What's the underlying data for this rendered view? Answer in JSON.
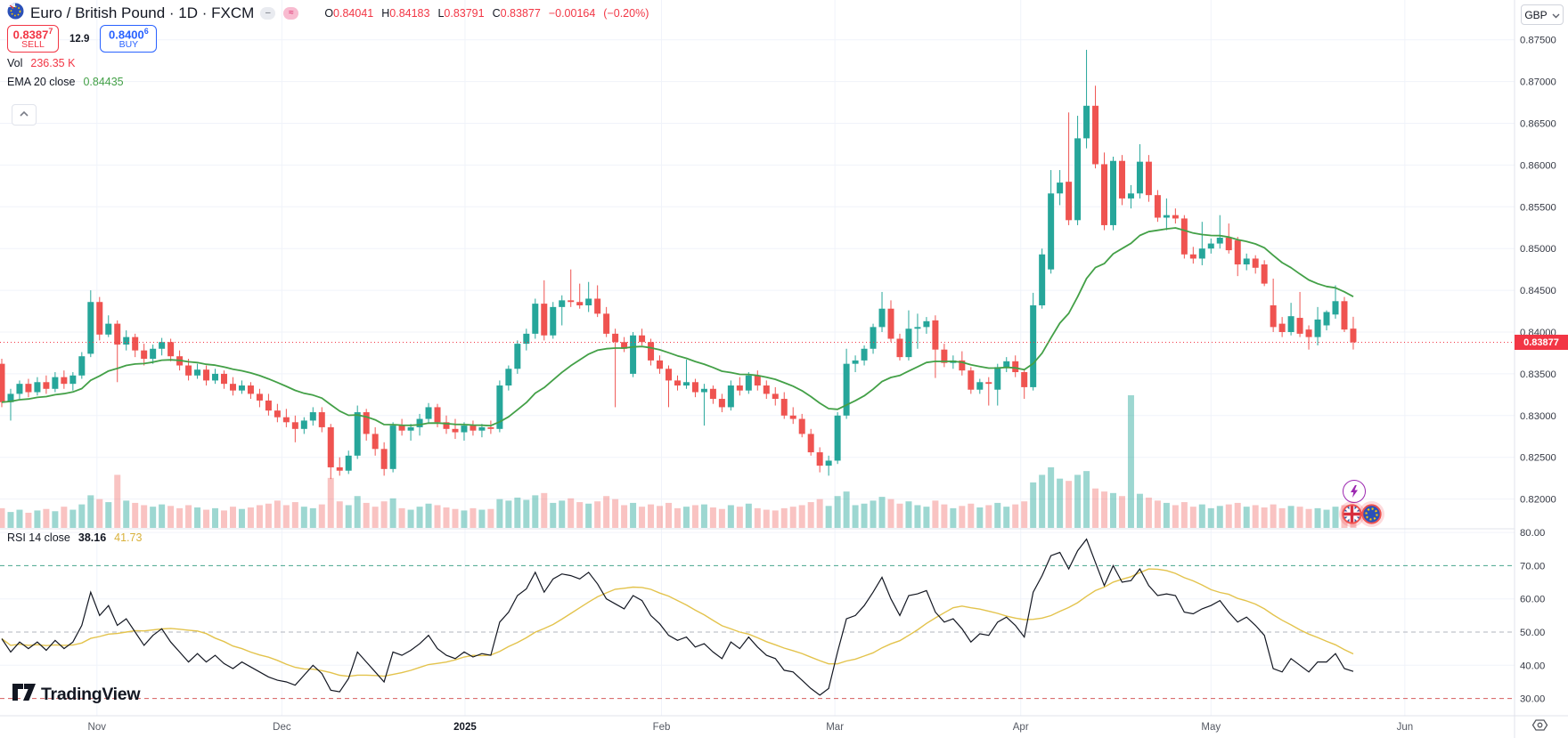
{
  "header": {
    "title": "Euro / British Pound · 1D · FXCM",
    "pill_minus": "–",
    "pill_approx": "≈",
    "ohlc": {
      "o_label": "O",
      "o_value": "0.84041",
      "h_label": "H",
      "h_value": "0.84183",
      "l_label": "L",
      "l_value": "0.83791",
      "c_label": "C",
      "c_value": "0.83877",
      "change": "−0.00164",
      "change_pct": "(−0.20%)"
    }
  },
  "trade": {
    "sell_price_main": "0.8387",
    "sell_price_sup": "7",
    "sell_label": "SELL",
    "spread": "12.9",
    "buy_price_main": "0.8400",
    "buy_price_sup": "6",
    "buy_label": "BUY"
  },
  "legend": {
    "vol_label": "Vol",
    "vol_value": "236.35 K",
    "ema_label": "EMA 20 close",
    "ema_value": "0.84435",
    "rsi_label": "RSI 14 close",
    "rsi_value": "38.16",
    "rsi_ma_value": "41.73"
  },
  "axis": {
    "currency": "GBP",
    "last_price_label": "0.83877",
    "price_ticks": [
      "0.87500",
      "0.87000",
      "0.86500",
      "0.86000",
      "0.85500",
      "0.85000",
      "0.84500",
      "0.84000",
      "0.83500",
      "0.83000",
      "0.82500",
      "0.82000"
    ],
    "rsi_ticks": [
      "80.00",
      "70.00",
      "60.00",
      "50.00",
      "40.00",
      "30.00"
    ]
  },
  "logo": {
    "text": "TradingView"
  },
  "colors": {
    "up": "#26a69a",
    "down": "#ef5350",
    "vol_up": "rgba(38,166,154,0.45)",
    "vol_down": "rgba(239,83,80,0.35)",
    "ema": "#43a047",
    "rsi_line": "#131722",
    "rsi_ma": "#e3c34c",
    "accent_red": "#f23645",
    "accent_blue": "#2962ff",
    "grid": "#f0f3fa",
    "border": "#e0e3eb",
    "axis_text": "#363a45",
    "level_upper": "#45a58d",
    "level_middle": "#b2b5be",
    "level_lower": "#d65c5c"
  },
  "chart_data": {
    "type": "candlestick",
    "title": "Euro / British Pound · 1D · FXCM",
    "legend_position": "top-left",
    "grid": true,
    "price_axis_ticks": [
      0.875,
      0.87,
      0.865,
      0.86,
      0.855,
      0.85,
      0.845,
      0.84,
      0.835,
      0.83,
      0.825,
      0.82
    ],
    "rsi_axis_ticks": [
      80,
      70,
      60,
      50,
      40,
      30
    ],
    "rsi_levels": {
      "upper": 70,
      "middle": 50,
      "lower": 30
    },
    "ema_period": 20,
    "rsi_period": 14,
    "rsi_ma_period": 14,
    "last_price": 0.83877,
    "x_ticks": [
      {
        "label": "Nov",
        "i": 10.7
      },
      {
        "label": "Dec",
        "i": 31.5
      },
      {
        "label": "2025",
        "i": 52.1,
        "bold": true
      },
      {
        "label": "Feb",
        "i": 74.2
      },
      {
        "label": "Mar",
        "i": 93.7
      },
      {
        "label": "Apr",
        "i": 114.6
      },
      {
        "label": "May",
        "i": 136.0
      },
      {
        "label": "Jun",
        "i": 157.8
      }
    ],
    "candles": [
      [
        0.8362,
        0.8368,
        0.831,
        0.8316
      ],
      [
        0.8316,
        0.8332,
        0.8294,
        0.8326
      ],
      [
        0.8326,
        0.8342,
        0.832,
        0.8338
      ],
      [
        0.8338,
        0.8344,
        0.8322,
        0.8328
      ],
      [
        0.8328,
        0.8346,
        0.8324,
        0.834
      ],
      [
        0.834,
        0.8348,
        0.8326,
        0.8332
      ],
      [
        0.8332,
        0.8352,
        0.8328,
        0.8346
      ],
      [
        0.8346,
        0.8354,
        0.8332,
        0.8338
      ],
      [
        0.8338,
        0.8352,
        0.833,
        0.8348
      ],
      [
        0.8348,
        0.8376,
        0.8344,
        0.8371
      ],
      [
        0.8374,
        0.845,
        0.837,
        0.8436
      ],
      [
        0.8436,
        0.8442,
        0.839,
        0.8397
      ],
      [
        0.8397,
        0.842,
        0.8394,
        0.841
      ],
      [
        0.841,
        0.8414,
        0.834,
        0.8385
      ],
      [
        0.8385,
        0.8402,
        0.8378,
        0.8394
      ],
      [
        0.8394,
        0.8398,
        0.837,
        0.8378
      ],
      [
        0.8378,
        0.8386,
        0.836,
        0.8368
      ],
      [
        0.8368,
        0.8385,
        0.8362,
        0.838
      ],
      [
        0.838,
        0.8393,
        0.8372,
        0.8388
      ],
      [
        0.8388,
        0.8392,
        0.8365,
        0.8371
      ],
      [
        0.8371,
        0.8378,
        0.8354,
        0.836
      ],
      [
        0.836,
        0.8368,
        0.8342,
        0.8348
      ],
      [
        0.8348,
        0.8362,
        0.8344,
        0.8355
      ],
      [
        0.8355,
        0.836,
        0.8336,
        0.8342
      ],
      [
        0.8342,
        0.8356,
        0.8338,
        0.835
      ],
      [
        0.835,
        0.8354,
        0.8332,
        0.8338
      ],
      [
        0.8338,
        0.8346,
        0.8324,
        0.833
      ],
      [
        0.833,
        0.8342,
        0.8326,
        0.8336
      ],
      [
        0.8336,
        0.834,
        0.832,
        0.8326
      ],
      [
        0.8326,
        0.8332,
        0.831,
        0.8318
      ],
      [
        0.8318,
        0.8326,
        0.83,
        0.8306
      ],
      [
        0.8306,
        0.8314,
        0.8292,
        0.8298
      ],
      [
        0.8298,
        0.8308,
        0.8286,
        0.8292
      ],
      [
        0.8292,
        0.83,
        0.8268,
        0.8284
      ],
      [
        0.8284,
        0.8298,
        0.8278,
        0.8294
      ],
      [
        0.8294,
        0.831,
        0.8288,
        0.8304
      ],
      [
        0.8304,
        0.831,
        0.828,
        0.8286
      ],
      [
        0.8286,
        0.829,
        0.8224,
        0.8238
      ],
      [
        0.8238,
        0.825,
        0.8228,
        0.8234
      ],
      [
        0.8234,
        0.8258,
        0.823,
        0.8252
      ],
      [
        0.8252,
        0.8312,
        0.8248,
        0.8304
      ],
      [
        0.8304,
        0.8308,
        0.827,
        0.8278
      ],
      [
        0.8278,
        0.8286,
        0.8252,
        0.826
      ],
      [
        0.826,
        0.8268,
        0.8228,
        0.8236
      ],
      [
        0.8236,
        0.8292,
        0.8232,
        0.8288
      ],
      [
        0.8288,
        0.8296,
        0.8276,
        0.8282
      ],
      [
        0.8282,
        0.829,
        0.827,
        0.8286
      ],
      [
        0.8286,
        0.8302,
        0.8276,
        0.8296
      ],
      [
        0.8296,
        0.8315,
        0.829,
        0.831
      ],
      [
        0.831,
        0.8314,
        0.8286,
        0.8292
      ],
      [
        0.8292,
        0.83,
        0.8278,
        0.8284
      ],
      [
        0.8284,
        0.8296,
        0.8272,
        0.828
      ],
      [
        0.828,
        0.8292,
        0.827,
        0.8288
      ],
      [
        0.8288,
        0.8294,
        0.8276,
        0.8282
      ],
      [
        0.8282,
        0.829,
        0.8274,
        0.8286
      ],
      [
        0.8286,
        0.8294,
        0.8278,
        0.8284
      ],
      [
        0.8284,
        0.8342,
        0.828,
        0.8336
      ],
      [
        0.8336,
        0.836,
        0.833,
        0.8356
      ],
      [
        0.8356,
        0.839,
        0.835,
        0.8386
      ],
      [
        0.8386,
        0.8404,
        0.8378,
        0.8398
      ],
      [
        0.8398,
        0.844,
        0.8392,
        0.8434
      ],
      [
        0.8434,
        0.8462,
        0.839,
        0.8396
      ],
      [
        0.8396,
        0.8436,
        0.8392,
        0.843
      ],
      [
        0.843,
        0.8444,
        0.8408,
        0.8438
      ],
      [
        0.8438,
        0.8475,
        0.843,
        0.8436
      ],
      [
        0.8436,
        0.8458,
        0.8428,
        0.8432
      ],
      [
        0.8432,
        0.846,
        0.8424,
        0.844
      ],
      [
        0.844,
        0.8456,
        0.8418,
        0.8422
      ],
      [
        0.8422,
        0.843,
        0.8394,
        0.8398
      ],
      [
        0.8398,
        0.8404,
        0.831,
        0.8388
      ],
      [
        0.8388,
        0.8394,
        0.8376,
        0.838
      ],
      [
        0.835,
        0.84,
        0.8346,
        0.8396
      ],
      [
        0.8396,
        0.8404,
        0.8384,
        0.8388
      ],
      [
        0.8388,
        0.8392,
        0.836,
        0.8366
      ],
      [
        0.8366,
        0.8372,
        0.835,
        0.8356
      ],
      [
        0.8356,
        0.836,
        0.831,
        0.8342
      ],
      [
        0.8342,
        0.8348,
        0.833,
        0.8336
      ],
      [
        0.8336,
        0.8367,
        0.8332,
        0.834
      ],
      [
        0.834,
        0.8344,
        0.8322,
        0.8328
      ],
      [
        0.8328,
        0.8338,
        0.8288,
        0.8332
      ],
      [
        0.8332,
        0.8336,
        0.8314,
        0.832
      ],
      [
        0.832,
        0.8326,
        0.8304,
        0.831
      ],
      [
        0.831,
        0.8342,
        0.8306,
        0.8336
      ],
      [
        0.8336,
        0.8346,
        0.8324,
        0.833
      ],
      [
        0.833,
        0.8352,
        0.8326,
        0.8348
      ],
      [
        0.8348,
        0.8354,
        0.833,
        0.8336
      ],
      [
        0.8336,
        0.8342,
        0.832,
        0.8326
      ],
      [
        0.8326,
        0.8334,
        0.8312,
        0.832
      ],
      [
        0.832,
        0.8328,
        0.8296,
        0.83
      ],
      [
        0.83,
        0.831,
        0.829,
        0.8296
      ],
      [
        0.8296,
        0.8302,
        0.8274,
        0.8278
      ],
      [
        0.8278,
        0.8284,
        0.8252,
        0.8256
      ],
      [
        0.8256,
        0.8262,
        0.8232,
        0.824
      ],
      [
        0.824,
        0.8252,
        0.8228,
        0.8246
      ],
      [
        0.8246,
        0.8304,
        0.8242,
        0.83
      ],
      [
        0.83,
        0.838,
        0.8296,
        0.8362
      ],
      [
        0.8362,
        0.8372,
        0.8352,
        0.8366
      ],
      [
        0.8366,
        0.8384,
        0.836,
        0.838
      ],
      [
        0.838,
        0.841,
        0.8374,
        0.8406
      ],
      [
        0.8406,
        0.8448,
        0.84,
        0.8428
      ],
      [
        0.8428,
        0.8438,
        0.8388,
        0.8392
      ],
      [
        0.8392,
        0.8398,
        0.8366,
        0.837
      ],
      [
        0.837,
        0.8426,
        0.8366,
        0.8404
      ],
      [
        0.8404,
        0.8422,
        0.838,
        0.8406
      ],
      [
        0.8406,
        0.8418,
        0.8398,
        0.8413
      ],
      [
        0.8414,
        0.842,
        0.8345,
        0.8379
      ],
      [
        0.8379,
        0.8386,
        0.8358,
        0.8363
      ],
      [
        0.8363,
        0.8372,
        0.8356,
        0.8366
      ],
      [
        0.8366,
        0.8377,
        0.8348,
        0.8354
      ],
      [
        0.8354,
        0.8358,
        0.8326,
        0.8331
      ],
      [
        0.8331,
        0.8344,
        0.8326,
        0.834
      ],
      [
        0.834,
        0.8346,
        0.8312,
        0.8338
      ],
      [
        0.8331,
        0.8362,
        0.8312,
        0.8358
      ],
      [
        0.8358,
        0.837,
        0.8352,
        0.8365
      ],
      [
        0.8365,
        0.8372,
        0.8346,
        0.8352
      ],
      [
        0.8352,
        0.8356,
        0.832,
        0.8334
      ],
      [
        0.8334,
        0.8447,
        0.833,
        0.8432
      ],
      [
        0.8432,
        0.85,
        0.8428,
        0.8493
      ],
      [
        0.8475,
        0.8594,
        0.847,
        0.8566
      ],
      [
        0.8566,
        0.8594,
        0.8552,
        0.8579
      ],
      [
        0.858,
        0.8663,
        0.8528,
        0.8534
      ],
      [
        0.8534,
        0.8659,
        0.8528,
        0.8632
      ],
      [
        0.8632,
        0.8738,
        0.862,
        0.8671
      ],
      [
        0.8671,
        0.8695,
        0.8596,
        0.8601
      ],
      [
        0.8601,
        0.8615,
        0.8522,
        0.8528
      ],
      [
        0.8528,
        0.861,
        0.8522,
        0.8605
      ],
      [
        0.8605,
        0.8612,
        0.8552,
        0.856
      ],
      [
        0.856,
        0.8576,
        0.8548,
        0.8566
      ],
      [
        0.8566,
        0.8625,
        0.856,
        0.8604
      ],
      [
        0.8604,
        0.8612,
        0.8556,
        0.8564
      ],
      [
        0.8564,
        0.857,
        0.8532,
        0.8537
      ],
      [
        0.8537,
        0.856,
        0.8522,
        0.854
      ],
      [
        0.854,
        0.8548,
        0.853,
        0.8536
      ],
      [
        0.8536,
        0.854,
        0.8488,
        0.8493
      ],
      [
        0.8493,
        0.8502,
        0.8482,
        0.8488
      ],
      [
        0.8488,
        0.8532,
        0.848,
        0.85
      ],
      [
        0.85,
        0.8512,
        0.8494,
        0.8506
      ],
      [
        0.8506,
        0.854,
        0.85,
        0.8513
      ],
      [
        0.8513,
        0.853,
        0.8494,
        0.8498
      ],
      [
        0.851,
        0.8514,
        0.8467,
        0.8481
      ],
      [
        0.8481,
        0.8494,
        0.8474,
        0.8488
      ],
      [
        0.8488,
        0.8492,
        0.847,
        0.8477
      ],
      [
        0.8481,
        0.8486,
        0.8455,
        0.8458
      ],
      [
        0.8432,
        0.8464,
        0.84,
        0.8406
      ],
      [
        0.841,
        0.8418,
        0.8394,
        0.84
      ],
      [
        0.84,
        0.8435,
        0.8396,
        0.8419
      ],
      [
        0.8417,
        0.8448,
        0.8394,
        0.8398
      ],
      [
        0.8403,
        0.8408,
        0.8379,
        0.8394
      ],
      [
        0.8394,
        0.843,
        0.8384,
        0.8415
      ],
      [
        0.8408,
        0.8426,
        0.8402,
        0.8424
      ],
      [
        0.8421,
        0.8456,
        0.8416,
        0.8437
      ],
      [
        0.8437,
        0.8442,
        0.84,
        0.8403
      ],
      [
        0.84041,
        0.84183,
        0.83791,
        0.83877
      ]
    ],
    "volumes": [
      260,
      210,
      240,
      200,
      230,
      250,
      220,
      280,
      240,
      310,
      430,
      380,
      340,
      700,
      360,
      330,
      300,
      280,
      310,
      290,
      260,
      300,
      270,
      240,
      260,
      230,
      280,
      250,
      270,
      300,
      320,
      360,
      300,
      340,
      280,
      260,
      310,
      660,
      350,
      300,
      420,
      330,
      280,
      350,
      390,
      260,
      240,
      280,
      320,
      300,
      270,
      250,
      230,
      260,
      240,
      250,
      380,
      360,
      400,
      370,
      430,
      460,
      330,
      360,
      390,
      340,
      320,
      350,
      420,
      380,
      300,
      330,
      280,
      310,
      290,
      330,
      260,
      280,
      300,
      310,
      270,
      250,
      300,
      280,
      320,
      260,
      240,
      230,
      260,
      280,
      300,
      340,
      380,
      290,
      420,
      480,
      300,
      320,
      360,
      410,
      380,
      320,
      350,
      300,
      280,
      360,
      310,
      260,
      290,
      320,
      270,
      300,
      330,
      280,
      310,
      350,
      600,
      700,
      800,
      650,
      620,
      700,
      750,
      520,
      480,
      460,
      420,
      1750,
      450,
      400,
      360,
      330,
      300,
      340,
      280,
      310,
      260,
      290,
      310,
      330,
      280,
      300,
      270,
      310,
      260,
      290,
      280,
      250,
      260,
      240,
      280,
      300,
      236.35
    ],
    "rsi": [
      48,
      44,
      47,
      45,
      47,
      44.5,
      47.5,
      45,
      47,
      52,
      62,
      55,
      58,
      52,
      54,
      50,
      46,
      49,
      51,
      47,
      44,
      41,
      43.5,
      41,
      43,
      40.5,
      39,
      41,
      39.5,
      38,
      36.5,
      35.5,
      35,
      34,
      37,
      40,
      37.5,
      32.5,
      32,
      36,
      44,
      41,
      38,
      35,
      44,
      43,
      44.5,
      46.5,
      49,
      45,
      43,
      42,
      44,
      42.5,
      43.5,
      43,
      53,
      56,
      61,
      63,
      68,
      62,
      66,
      67.5,
      67,
      66,
      68,
      64.5,
      60,
      58.5,
      57,
      61,
      59.5,
      55,
      52.5,
      49,
      47.5,
      48.5,
      45.5,
      46.5,
      44,
      42,
      47,
      45,
      48.5,
      45.5,
      43,
      42,
      38.5,
      38,
      35.5,
      33,
      31,
      33,
      44,
      54,
      55,
      58,
      62,
      66.5,
      60,
      55,
      61,
      61.5,
      62.5,
      56,
      53,
      54,
      51,
      47,
      49.5,
      49,
      53,
      54.5,
      52,
      48.5,
      62,
      67,
      73,
      74,
      69,
      74.5,
      78,
      71,
      64,
      70,
      65,
      65.5,
      69,
      64,
      61,
      61.5,
      61,
      56,
      55.5,
      57,
      58,
      59.5,
      56,
      53,
      54.5,
      52,
      49,
      39,
      38,
      42,
      40,
      38,
      41,
      41,
      43.5,
      39,
      38.16
    ]
  }
}
